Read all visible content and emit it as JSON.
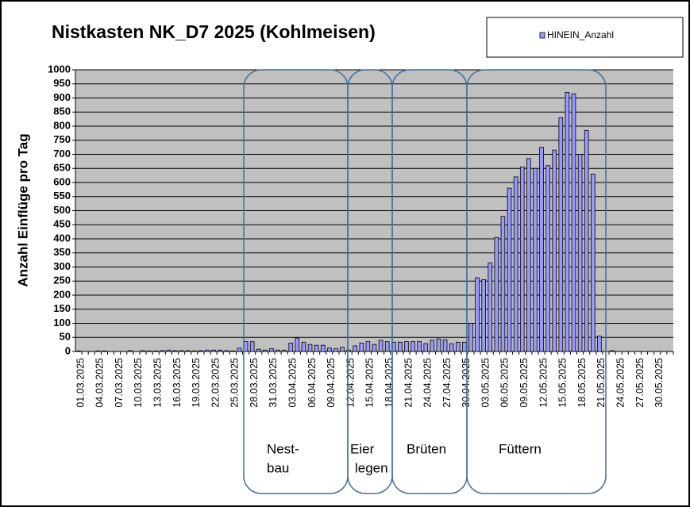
{
  "chart_data": {
    "type": "bar",
    "title": "Nistkasten NK_D7 2025 (Kohlmeisen)",
    "y_label": "Anzahl Einflüge pro Tag",
    "series": [
      {
        "name": "HINEIN_Anzahl",
        "color": "#9999ff",
        "values": [
          2,
          0,
          0,
          2,
          2,
          0,
          0,
          0,
          3,
          0,
          3,
          2,
          2,
          3,
          5,
          3,
          3,
          3,
          2,
          3,
          5,
          5,
          5,
          3,
          2,
          12,
          35,
          35,
          8,
          5,
          10,
          5,
          5,
          30,
          48,
          33,
          25,
          22,
          22,
          12,
          10,
          15,
          5,
          20,
          30,
          35,
          25,
          40,
          35,
          33,
          33,
          35,
          35,
          35,
          28,
          40,
          45,
          42,
          28,
          33,
          33,
          100,
          262,
          255,
          315,
          405,
          480,
          580,
          620,
          655,
          685,
          650,
          725,
          660,
          715,
          830,
          920,
          915,
          700,
          785,
          630,
          55,
          0,
          3,
          0,
          0,
          0,
          0,
          0,
          0,
          0,
          0,
          0
        ]
      }
    ],
    "categories": [
      "01.03.2025",
      null,
      null,
      "04.03.2025",
      null,
      null,
      "07.03.2025",
      null,
      null,
      "10.03.2025",
      null,
      null,
      "13.03.2025",
      null,
      null,
      "16.03.2025",
      null,
      null,
      "19.03.2025",
      null,
      null,
      "22.03.2025",
      null,
      null,
      "25.03.2025",
      null,
      null,
      "28.03.2025",
      null,
      null,
      "31.03.2025",
      null,
      null,
      "03.04.2025",
      null,
      null,
      "06.04.2025",
      null,
      null,
      "09.04.2025",
      null,
      null,
      "12.04.2025",
      null,
      null,
      "15.04.2025",
      null,
      null,
      "18.04.2025",
      null,
      null,
      "21.04.2025",
      null,
      null,
      "24.04.2025",
      null,
      null,
      "27.04.2025",
      null,
      null,
      "30.04.2025",
      null,
      null,
      "03.05.2025",
      null,
      null,
      "06.05.2025",
      null,
      null,
      "09.05.2025",
      null,
      null,
      "12.05.2025",
      null,
      null,
      "15.05.2025",
      null,
      null,
      "18.05.2025",
      null,
      null,
      "21.05.2025",
      null,
      null,
      "24.05.2025",
      null,
      null,
      "27.05.2025",
      null,
      null,
      "30.05.2025",
      null,
      null
    ],
    "ylim": [
      0,
      1000
    ],
    "yticks": [
      0,
      50,
      100,
      150,
      200,
      250,
      300,
      350,
      400,
      450,
      500,
      550,
      600,
      650,
      700,
      750,
      800,
      850,
      900,
      950,
      1000
    ],
    "grid": true,
    "legend": "top-right",
    "annotations": [
      {
        "lines": [
          "Nest-",
          "bau"
        ]
      },
      {
        "lines": [
          "Eier",
          "legen"
        ]
      },
      {
        "lines": [
          "Brüten"
        ]
      },
      {
        "lines": [
          "Füttern"
        ]
      }
    ]
  }
}
